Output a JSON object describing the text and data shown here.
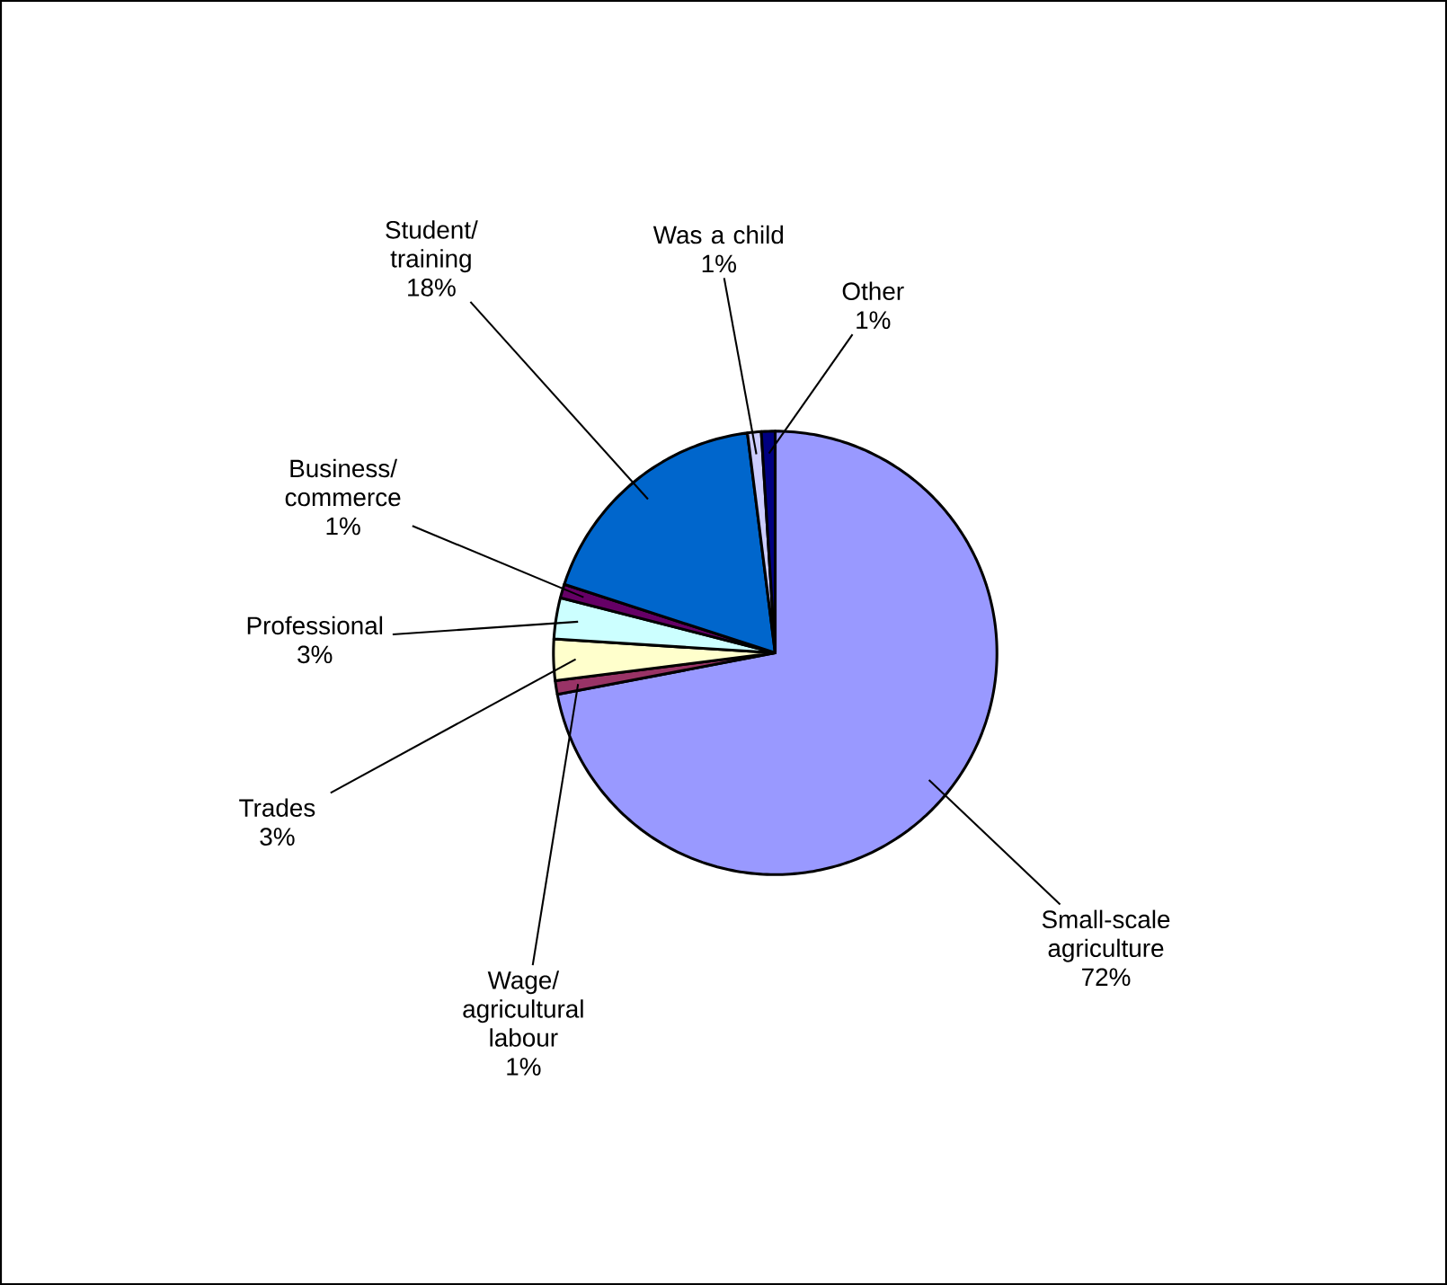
{
  "chart_data": {
    "type": "pie",
    "categories": [
      "Small-scale agriculture",
      "Wage/agricultural labour",
      "Trades",
      "Professional",
      "Business/commerce",
      "Student/training",
      "Was a child",
      "Other"
    ],
    "values": [
      72,
      1,
      3,
      3,
      1,
      18,
      1,
      1
    ],
    "value_labels": [
      "72%",
      "1%",
      "3%",
      "3%",
      "1%",
      "18%",
      "1%",
      "1%"
    ],
    "colors": [
      "#9999ff",
      "#993366",
      "#ffffcc",
      "#ccffff",
      "#660066",
      "#0066cc",
      "#ccccff",
      "#000080"
    ]
  }
}
